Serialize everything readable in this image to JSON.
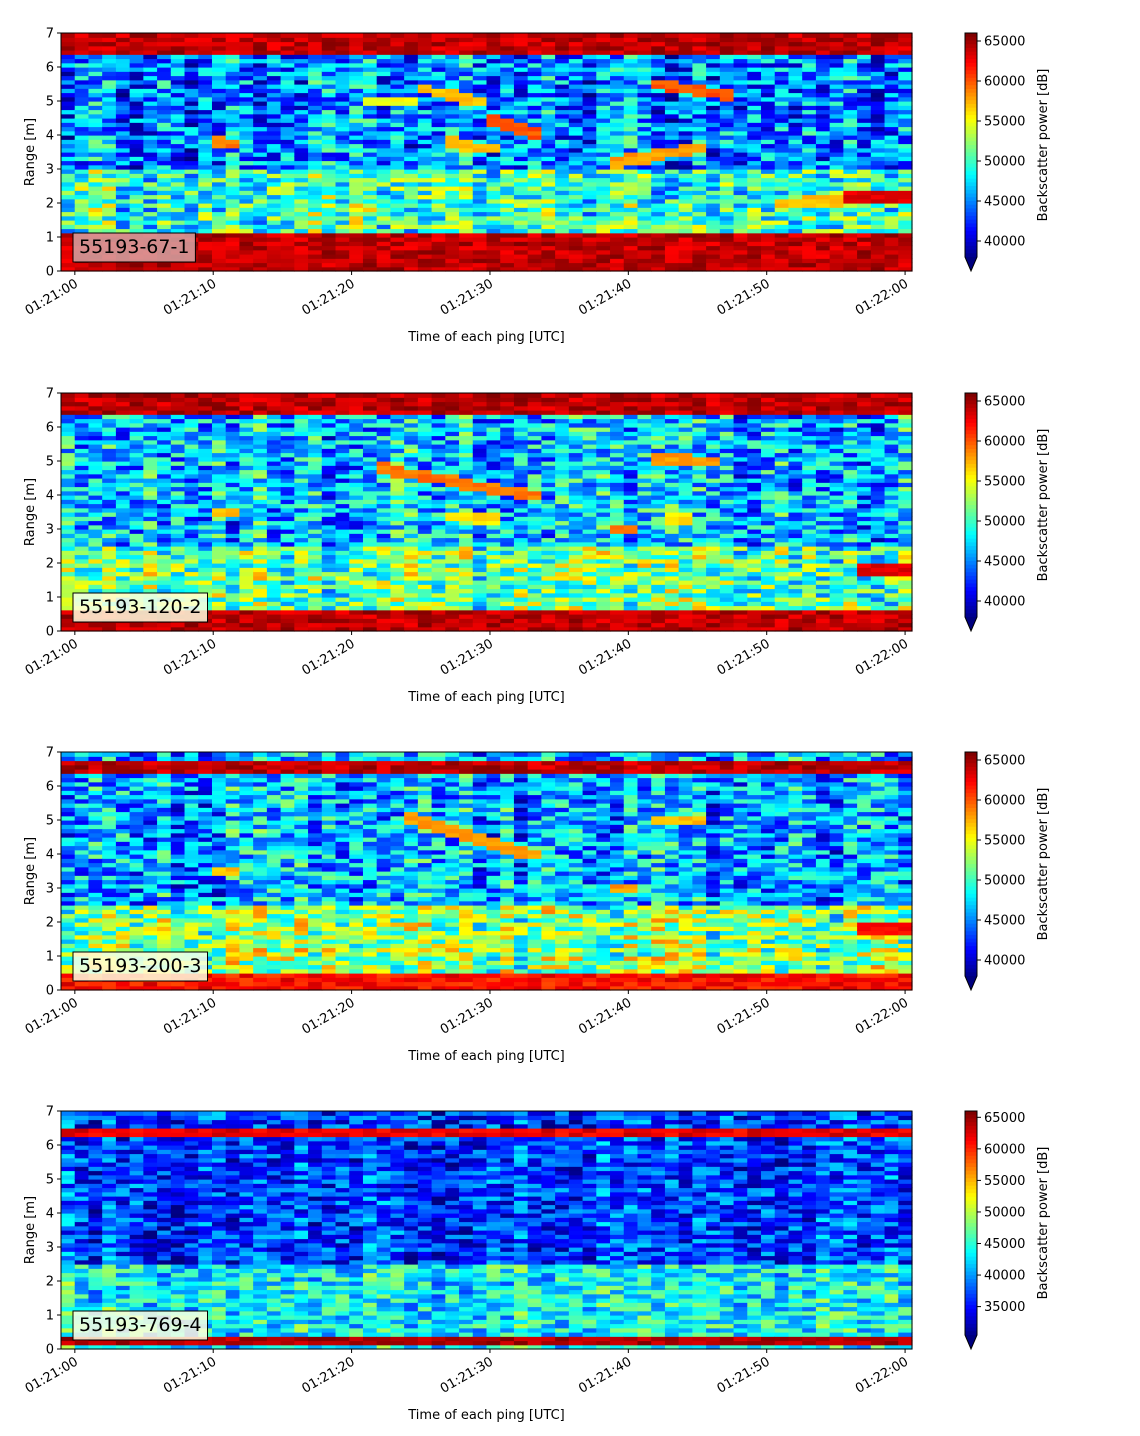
{
  "figure": {
    "colormap": "jet",
    "colormap_stops": [
      "#00007f",
      "#0000ff",
      "#007fff",
      "#00ffff",
      "#7fff7f",
      "#ffff00",
      "#ff7f00",
      "#ff0000",
      "#7f0000"
    ],
    "label_box_colors": {
      "low": "#ffffe0",
      "high": "#d9a4a4"
    }
  },
  "chart_data": [
    {
      "type": "heatmap",
      "panel_label": "55193-67-1",
      "xlabel": "Time of each ping [UTC]",
      "ylabel": "Range [m]",
      "x_range": [
        "01:20:59",
        "01:22:00"
      ],
      "xticks": [
        "01:21:00",
        "01:21:10",
        "01:21:20",
        "01:21:30",
        "01:21:40",
        "01:21:50",
        "01:22:00"
      ],
      "ylim": [
        0,
        7
      ],
      "yticks": [
        "0",
        "1",
        "2",
        "3",
        "4",
        "5",
        "6",
        "7"
      ],
      "colorbar": {
        "label": "Backscatter power [dB]",
        "range": [
          38000,
          66000
        ],
        "ticks": [
          "40000",
          "45000",
          "50000",
          "55000",
          "60000",
          "65000"
        ],
        "extend": "min"
      },
      "bands": [
        {
          "range_m": [
            0,
            1.15
          ],
          "level": 66000
        },
        {
          "range_m": [
            6.35,
            7
          ],
          "level": 66000
        }
      ],
      "background_levels": {
        "low_range_m": [
          1.15,
          3
        ],
        "low_level": 50000,
        "high_range_m": [
          3,
          6.35
        ],
        "high_level": 45000
      },
      "echoes": [
        {
          "t": [
            10,
            12
          ],
          "r": [
            3.8,
            3.7
          ],
          "level": 60000
        },
        {
          "t": [
            25,
            29
          ],
          "r": [
            5.4,
            5.0
          ],
          "level": 58000
        },
        {
          "t": [
            30,
            33
          ],
          "r": [
            4.5,
            4.1
          ],
          "level": 61000
        },
        {
          "t": [
            27,
            30
          ],
          "r": [
            3.8,
            3.6
          ],
          "level": 58000
        },
        {
          "t": [
            39,
            45
          ],
          "r": [
            3.2,
            3.6
          ],
          "level": 59000
        },
        {
          "t": [
            42,
            47
          ],
          "r": [
            5.5,
            5.2
          ],
          "level": 61000
        },
        {
          "t": [
            51,
            60
          ],
          "r": [
            2.0,
            2.2
          ],
          "level": 58000
        },
        {
          "t": [
            56,
            60
          ],
          "r": [
            2.2,
            2.2
          ],
          "level": 64000
        },
        {
          "t": [
            21,
            24
          ],
          "r": [
            5.0,
            5.0
          ],
          "level": 56000
        }
      ]
    },
    {
      "type": "heatmap",
      "panel_label": "55193-120-2",
      "xlabel": "Time of each ping [UTC]",
      "ylabel": "Range [m]",
      "x_range": [
        "01:20:59",
        "01:22:00"
      ],
      "xticks": [
        "01:21:00",
        "01:21:10",
        "01:21:20",
        "01:21:30",
        "01:21:40",
        "01:21:50",
        "01:22:00"
      ],
      "ylim": [
        0,
        7
      ],
      "yticks": [
        "0",
        "1",
        "2",
        "3",
        "4",
        "5",
        "6",
        "7"
      ],
      "colorbar": {
        "label": "Backscatter power [dB]",
        "range": [
          38000,
          66000
        ],
        "ticks": [
          "40000",
          "45000",
          "50000",
          "55000",
          "60000",
          "65000"
        ],
        "extend": "min"
      },
      "bands": [
        {
          "range_m": [
            0,
            0.6
          ],
          "level": 66000
        },
        {
          "range_m": [
            6.35,
            7
          ],
          "level": 66000
        }
      ],
      "background_levels": {
        "low_range_m": [
          0.6,
          2.5
        ],
        "low_level": 51000,
        "high_range_m": [
          2.5,
          6.35
        ],
        "high_level": 46500
      },
      "echoes": [
        {
          "t": [
            10,
            12
          ],
          "r": [
            3.5,
            3.5
          ],
          "level": 58000
        },
        {
          "t": [
            22,
            33
          ],
          "r": [
            4.8,
            4.0
          ],
          "level": 60000
        },
        {
          "t": [
            27,
            30
          ],
          "r": [
            3.4,
            3.3
          ],
          "level": 57000
        },
        {
          "t": [
            39,
            40
          ],
          "r": [
            3.0,
            3.0
          ],
          "level": 60000
        },
        {
          "t": [
            42,
            46
          ],
          "r": [
            5.1,
            5.0
          ],
          "level": 59000
        },
        {
          "t": [
            43,
            44
          ],
          "r": [
            3.3,
            3.3
          ],
          "level": 57000
        },
        {
          "t": [
            57,
            60
          ],
          "r": [
            1.8,
            1.8
          ],
          "level": 64000
        }
      ]
    },
    {
      "type": "heatmap",
      "panel_label": "55193-200-3",
      "xlabel": "Time of each ping [UTC]",
      "ylabel": "Range [m]",
      "x_range": [
        "01:20:59",
        "01:22:00"
      ],
      "xticks": [
        "01:21:00",
        "01:21:10",
        "01:21:20",
        "01:21:30",
        "01:21:40",
        "01:21:50",
        "01:22:00"
      ],
      "ylim": [
        0,
        7
      ],
      "yticks": [
        "0",
        "1",
        "2",
        "3",
        "4",
        "5",
        "6",
        "7"
      ],
      "colorbar": {
        "label": "Backscatter power [dB]",
        "range": [
          38000,
          66000
        ],
        "ticks": [
          "40000",
          "45000",
          "50000",
          "55000",
          "60000",
          "65000"
        ],
        "extend": "min"
      },
      "bands": [
        {
          "range_m": [
            0,
            0.55
          ],
          "level": 64000
        },
        {
          "range_m": [
            6.35,
            6.75
          ],
          "level": 66000
        }
      ],
      "background_levels": {
        "low_range_m": [
          0.55,
          2.5
        ],
        "low_level": 52000,
        "high_range_m": [
          2.5,
          6.35
        ],
        "high_level": 46000
      },
      "echoes": [
        {
          "t": [
            10,
            12
          ],
          "r": [
            3.5,
            3.5
          ],
          "level": 58000
        },
        {
          "t": [
            24,
            33
          ],
          "r": [
            5.1,
            4.0
          ],
          "level": 59000
        },
        {
          "t": [
            39,
            40
          ],
          "r": [
            3.0,
            3.0
          ],
          "level": 59000
        },
        {
          "t": [
            42,
            45
          ],
          "r": [
            5.0,
            5.0
          ],
          "level": 58000
        },
        {
          "t": [
            57,
            60
          ],
          "r": [
            1.8,
            1.8
          ],
          "level": 63000
        }
      ]
    },
    {
      "type": "heatmap",
      "panel_label": "55193-769-4",
      "xlabel": "Time of each ping [UTC]",
      "ylabel": "Range [m]",
      "x_range": [
        "01:20:59",
        "01:22:00"
      ],
      "xticks": [
        "01:21:00",
        "01:21:10",
        "01:21:20",
        "01:21:30",
        "01:21:40",
        "01:21:50",
        "01:22:00"
      ],
      "ylim": [
        0,
        7
      ],
      "yticks": [
        "0",
        "1",
        "2",
        "3",
        "4",
        "5",
        "6",
        "7"
      ],
      "colorbar": {
        "label": "Backscatter power [dB]",
        "range": [
          30500,
          66000
        ],
        "ticks": [
          "35000",
          "40000",
          "45000",
          "50000",
          "55000",
          "60000",
          "65000"
        ],
        "extend": "min"
      },
      "bands": [
        {
          "range_m": [
            0.1,
            0.35
          ],
          "level": 66000
        },
        {
          "range_m": [
            6.3,
            6.55
          ],
          "level": 64000
        }
      ],
      "background_levels": {
        "low_range_m": [
          0.35,
          2.5
        ],
        "low_level": 44000,
        "high_range_m": [
          2.5,
          6.3
        ],
        "high_level": 37000
      },
      "echoes": []
    }
  ]
}
